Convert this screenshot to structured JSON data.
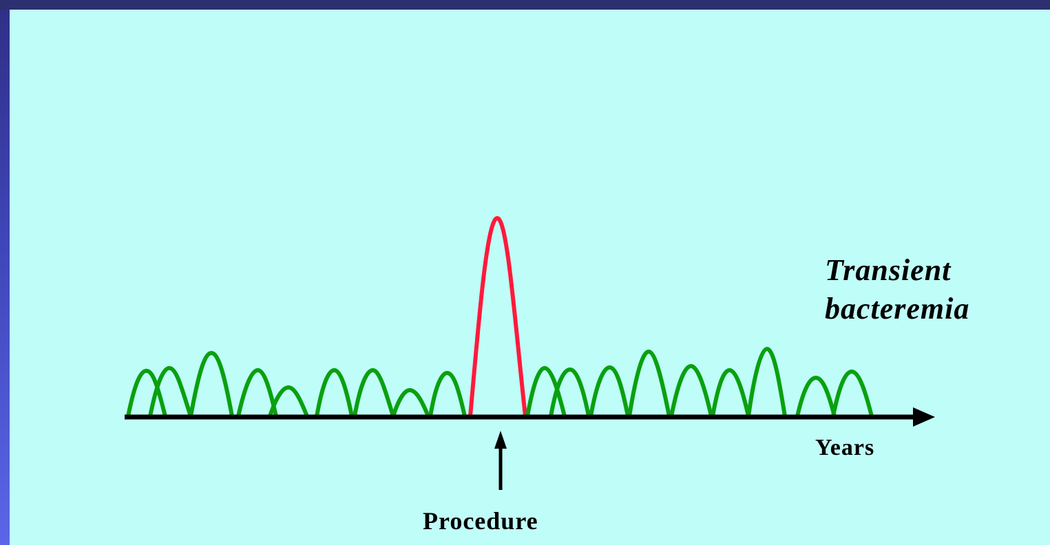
{
  "labels": {
    "transient_line1": "Transient",
    "transient_line2": "bacteremia",
    "x_axis": "Years",
    "event": "Procedure"
  },
  "colors": {
    "background": "#bffdf8",
    "frame": "#2f2f86",
    "routine_bacteremia": "#0aa010",
    "procedure_bacteremia": "#ff1a3c",
    "axis": "#000000"
  }
}
